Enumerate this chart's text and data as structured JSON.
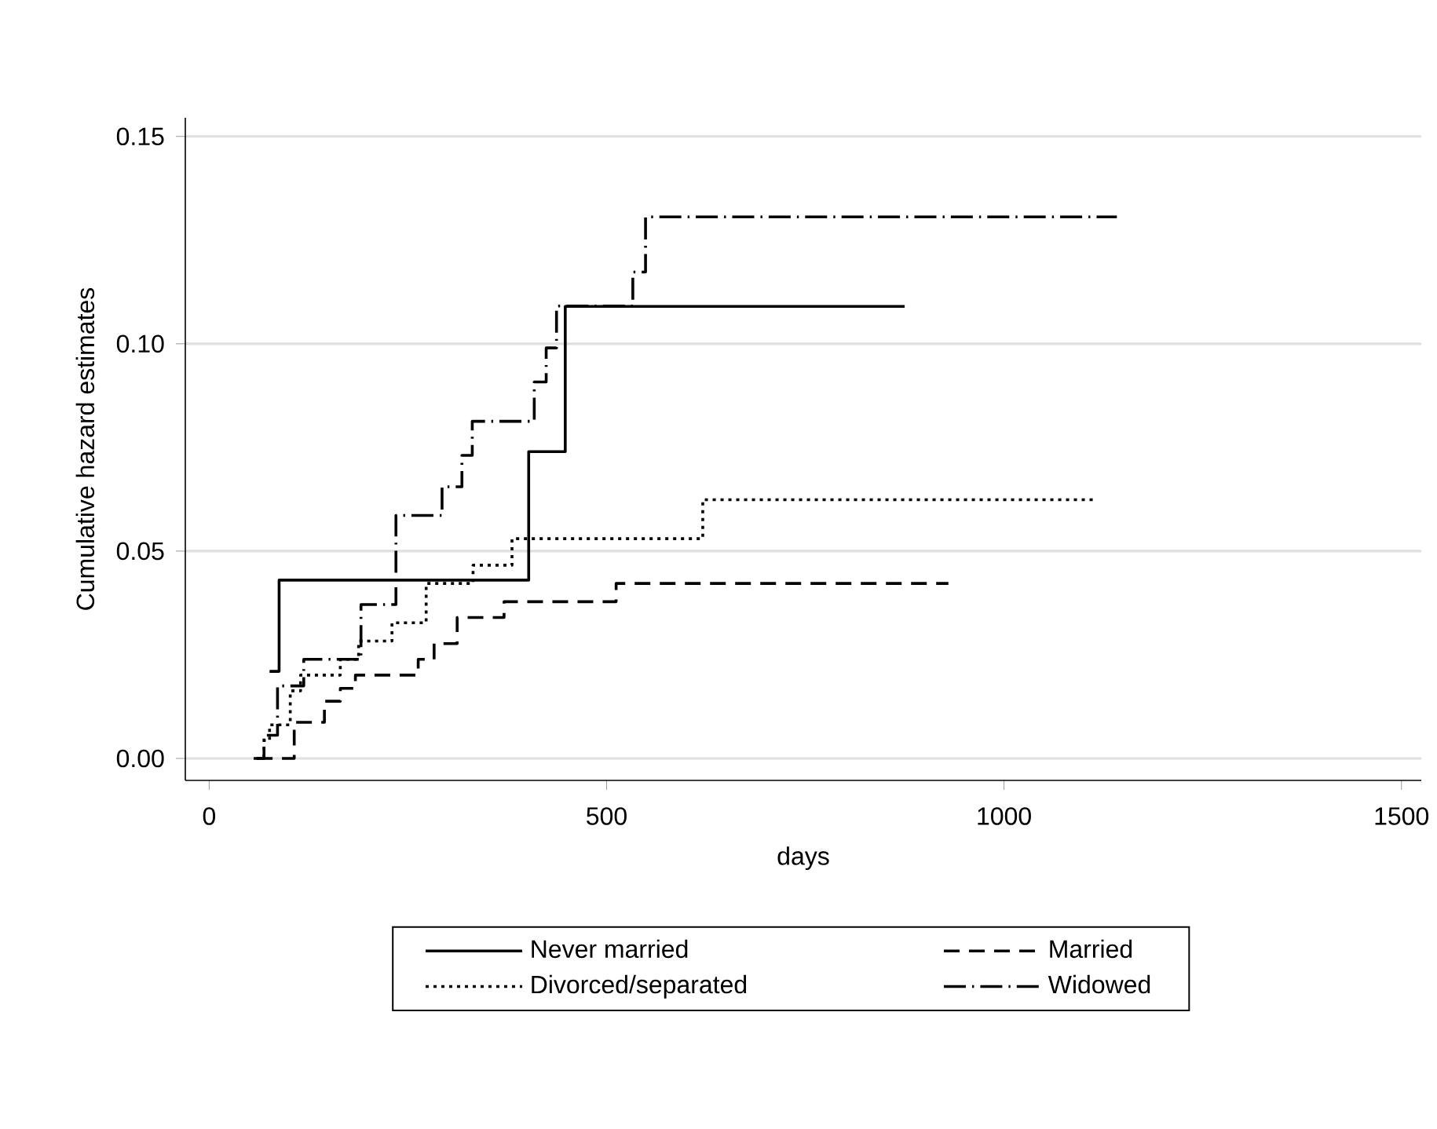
{
  "chart_data": {
    "type": "step",
    "xlabel": "days",
    "ylabel": "Cumulative hazard estimates",
    "xlim": [
      -30,
      1525
    ],
    "ylim": [
      -0.0053,
      0.1545
    ],
    "xticks": [
      0,
      500,
      1000,
      1500
    ],
    "yticks": [
      {
        "value": 0,
        "label": "0.00"
      },
      {
        "value": 0.05,
        "label": "0.05"
      },
      {
        "value": 0.1,
        "label": "0.10"
      },
      {
        "value": 0.15,
        "label": "0.15"
      }
    ],
    "grid": "y",
    "legend": "bottom",
    "series": [
      {
        "name": "Never married",
        "color": "#000000",
        "line_style": "solid",
        "x": [
          76,
          88,
          402,
          448,
          875
        ],
        "values": [
          0.021,
          0.043,
          0.074,
          0.109,
          0.109
        ]
      },
      {
        "name": "Married",
        "color": "#000000",
        "line_style": "dashed",
        "x": [
          60,
          107,
          145,
          165,
          184,
          263,
          283,
          312,
          371,
          512,
          930
        ],
        "values": [
          0,
          0.0087,
          0.0138,
          0.0169,
          0.0201,
          0.0239,
          0.0277,
          0.034,
          0.0378,
          0.0422,
          0.0422
        ]
      },
      {
        "name": "Divorced/separated",
        "color": "#000000",
        "line_style": "dotted",
        "x": [
          60,
          69,
          76,
          102,
          115,
          165,
          188,
          230,
          273,
          332,
          381,
          621,
          1116
        ],
        "values": [
          0,
          0.0043,
          0.0081,
          0.0163,
          0.0201,
          0.0239,
          0.0283,
          0.0327,
          0.0422,
          0.0466,
          0.053,
          0.0624,
          0.0624
        ]
      },
      {
        "name": "Widowed",
        "color": "#000000",
        "line_style": "dashdot",
        "x": [
          56,
          69,
          86,
          119,
          191,
          235,
          293,
          318,
          331,
          409,
          424,
          437,
          533,
          549,
          1142
        ],
        "values": [
          0,
          0.0056,
          0.0175,
          0.0239,
          0.0371,
          0.0586,
          0.0655,
          0.0731,
          0.0813,
          0.0908,
          0.099,
          0.1091,
          0.1173,
          0.1306,
          0.1306
        ]
      }
    ]
  }
}
